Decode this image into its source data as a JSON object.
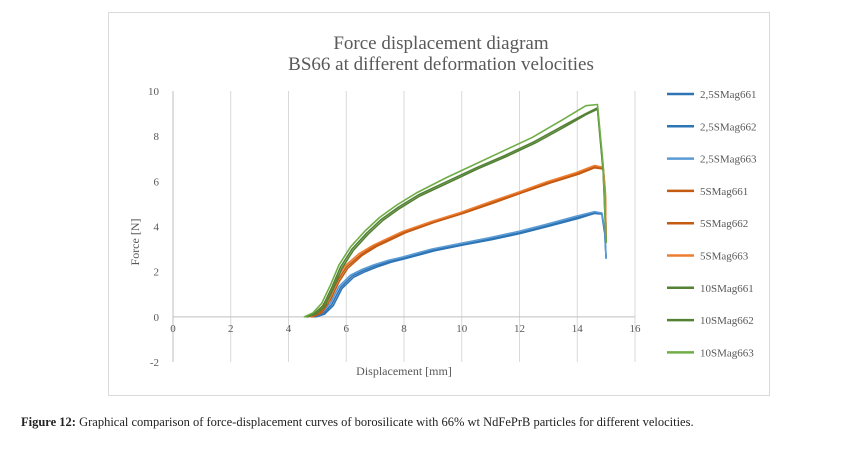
{
  "chart_data": {
    "type": "line",
    "title": "Force displacement  diagram",
    "subtitle": "BS66 at different deformation velocities",
    "xlabel": "Displacement [mm]",
    "ylabel": "Force [N]",
    "xlim": [
      0,
      16
    ],
    "ylim": [
      -2,
      10
    ],
    "xticks": [
      "0",
      "2",
      "4",
      "6",
      "8",
      "10",
      "12",
      "14",
      "16"
    ],
    "yticks": [
      "-2",
      "0",
      "2",
      "4",
      "6",
      "8",
      "10"
    ],
    "grid": "vertical",
    "legend_position": "right",
    "series": [
      {
        "name": "2,5SMag661",
        "color": "#2e75b6",
        "x": [
          4.9,
          5.2,
          5.5,
          5.8,
          6.2,
          6.6,
          7.0,
          7.5,
          8.0,
          9.0,
          10.0,
          11.0,
          12.0,
          13.0,
          14.0,
          14.6,
          14.85,
          14.95,
          15.0
        ],
        "y": [
          0,
          0.15,
          0.55,
          1.3,
          1.8,
          2.05,
          2.25,
          2.45,
          2.6,
          2.95,
          3.2,
          3.45,
          3.72,
          4.05,
          4.4,
          4.62,
          4.6,
          3.8,
          2.6
        ]
      },
      {
        "name": "2,5SMag662",
        "color": "#2e75b6",
        "x": [
          4.95,
          5.25,
          5.55,
          5.85,
          6.25,
          6.65,
          7.05,
          7.55,
          8.05,
          9.05,
          10.05,
          11.05,
          12.05,
          13.05,
          14.05,
          14.6,
          14.85,
          14.95,
          15.0
        ],
        "y": [
          0,
          0.12,
          0.5,
          1.25,
          1.75,
          2.0,
          2.2,
          2.42,
          2.58,
          2.92,
          3.18,
          3.42,
          3.7,
          4.02,
          4.36,
          4.58,
          4.55,
          3.7,
          2.6
        ]
      },
      {
        "name": "2,5SMag663",
        "color": "#5b9bd5",
        "x": [
          4.85,
          5.15,
          5.45,
          5.75,
          6.15,
          6.55,
          6.95,
          7.45,
          7.95,
          8.95,
          9.95,
          10.95,
          11.95,
          12.95,
          13.95,
          14.6,
          14.85,
          14.95,
          15.0
        ],
        "y": [
          0,
          0.18,
          0.6,
          1.35,
          1.85,
          2.1,
          2.3,
          2.5,
          2.65,
          3.0,
          3.25,
          3.5,
          3.78,
          4.1,
          4.45,
          4.66,
          4.6,
          3.9,
          2.6
        ]
      },
      {
        "name": "5SMag661",
        "color": "#c55a11",
        "x": [
          4.8,
          5.1,
          5.4,
          5.7,
          6.0,
          6.5,
          7.0,
          7.5,
          8.0,
          9.0,
          10.0,
          11.0,
          12.0,
          13.0,
          14.0,
          14.6,
          14.9,
          14.97,
          15.0
        ],
        "y": [
          0,
          0.2,
          0.8,
          1.6,
          2.2,
          2.75,
          3.15,
          3.45,
          3.75,
          4.2,
          4.6,
          5.05,
          5.5,
          5.95,
          6.35,
          6.65,
          6.6,
          5.5,
          3.3
        ]
      },
      {
        "name": "5SMag662",
        "color": "#c55a11",
        "x": [
          4.85,
          5.15,
          5.45,
          5.75,
          6.05,
          6.55,
          7.05,
          7.55,
          8.05,
          9.05,
          10.05,
          11.05,
          12.05,
          13.05,
          14.05,
          14.6,
          14.9,
          14.97,
          15.0
        ],
        "y": [
          0,
          0.18,
          0.75,
          1.55,
          2.15,
          2.72,
          3.12,
          3.42,
          3.72,
          4.18,
          4.58,
          5.02,
          5.48,
          5.92,
          6.32,
          6.6,
          6.55,
          5.4,
          3.3
        ]
      },
      {
        "name": "5SMag663",
        "color": "#ed7d31",
        "x": [
          4.75,
          5.05,
          5.35,
          5.65,
          5.95,
          6.45,
          6.95,
          7.45,
          7.95,
          8.95,
          9.95,
          10.95,
          11.95,
          12.95,
          13.95,
          14.6,
          14.9,
          14.97,
          15.0
        ],
        "y": [
          0,
          0.22,
          0.85,
          1.65,
          2.25,
          2.8,
          3.18,
          3.48,
          3.78,
          4.22,
          4.62,
          5.08,
          5.52,
          5.98,
          6.38,
          6.7,
          6.62,
          5.6,
          3.3
        ]
      },
      {
        "name": "10SMag661",
        "color": "#548235",
        "x": [
          4.6,
          4.9,
          5.2,
          5.5,
          5.8,
          6.2,
          6.7,
          7.2,
          7.8,
          8.5,
          9.5,
          10.5,
          11.5,
          12.5,
          13.5,
          14.3,
          14.7,
          14.9,
          15.0
        ],
        "y": [
          0,
          0.15,
          0.5,
          1.3,
          2.2,
          3.0,
          3.7,
          4.3,
          4.85,
          5.4,
          6.0,
          6.6,
          7.15,
          7.75,
          8.45,
          9.0,
          9.25,
          6.5,
          3.3
        ]
      },
      {
        "name": "10SMag662",
        "color": "#548235",
        "x": [
          4.65,
          4.95,
          5.25,
          5.55,
          5.85,
          6.25,
          6.75,
          7.25,
          7.85,
          8.55,
          9.55,
          10.55,
          11.55,
          12.55,
          13.55,
          14.3,
          14.7,
          14.9,
          15.0
        ],
        "y": [
          0,
          0.12,
          0.45,
          1.25,
          2.15,
          2.95,
          3.65,
          4.25,
          4.8,
          5.35,
          5.95,
          6.55,
          7.1,
          7.7,
          8.4,
          8.95,
          9.2,
          6.4,
          3.3
        ]
      },
      {
        "name": "10SMag663",
        "color": "#70ad47",
        "x": [
          4.55,
          4.85,
          5.15,
          5.45,
          5.75,
          6.15,
          6.65,
          7.15,
          7.75,
          8.45,
          9.45,
          10.45,
          11.45,
          12.45,
          13.45,
          14.3,
          14.7,
          14.9,
          15.0
        ],
        "y": [
          0,
          0.18,
          0.6,
          1.4,
          2.3,
          3.1,
          3.8,
          4.4,
          4.95,
          5.5,
          6.15,
          6.75,
          7.35,
          7.95,
          8.7,
          9.35,
          9.4,
          6.7,
          3.3
        ]
      }
    ]
  },
  "caption": {
    "label": "Figure 12:",
    "text": " Graphical comparison of force-displacement curves of borosilicate with 66% wt NdFePrB particles for different velocities."
  }
}
